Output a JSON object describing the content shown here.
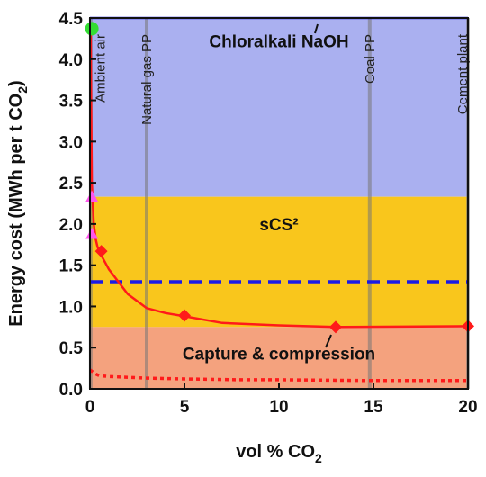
{
  "chart_data": {
    "type": "area",
    "xlabel": "vol % CO",
    "xlabel_sub": "2",
    "ylabel": "Energy cost (MWh per t CO",
    "ylabel_sub": "2",
    "ylabel_close": ")",
    "xlim": [
      0,
      20
    ],
    "ylim": [
      0,
      4.5
    ],
    "x_ticks": [
      0,
      5,
      10,
      15,
      20
    ],
    "y_ticks": [
      0.0,
      0.5,
      1.0,
      1.5,
      2.0,
      2.5,
      3.0,
      3.5,
      4.0,
      4.5
    ],
    "regions": [
      {
        "label": "Chloralkali NaOH",
        "ymin": 2.33,
        "ymax": 4.5,
        "color": "#aab0f0"
      },
      {
        "label": "sCS²",
        "ymin": 0.75,
        "ymax": 2.33,
        "color": "#f9c61c"
      },
      {
        "label": "Capture & compression",
        "ymin": 0.0,
        "ymax": 0.75,
        "color": "#f4a27e"
      }
    ],
    "source_lines": [
      {
        "label": "Ambient air",
        "x": 0.04
      },
      {
        "label": "Natural gas PP",
        "x": 3.0
      },
      {
        "label": "Coal PP",
        "x": 14.8
      },
      {
        "label": "Cement plant",
        "x": 20.0
      }
    ],
    "series": [
      {
        "style": "solid",
        "color": "#ff1a1a",
        "x": [
          0.04,
          0.06,
          0.1,
          0.2,
          0.3,
          0.4,
          0.6,
          1.0,
          2.0,
          3.0,
          4.0,
          5.0,
          7.0,
          10.0,
          13.0,
          20.0
        ],
        "y": [
          4.4,
          3.5,
          2.5,
          2.0,
          1.82,
          1.72,
          1.62,
          1.45,
          1.15,
          0.98,
          0.92,
          0.88,
          0.8,
          0.77,
          0.75,
          0.76
        ]
      },
      {
        "style": "dotted",
        "color": "#ff1a1a",
        "x": [
          0,
          0.3,
          0.5,
          1.0,
          2.0,
          3.0,
          5.0,
          8.0,
          10.0,
          15.0,
          20.0
        ],
        "y": [
          0.23,
          0.18,
          0.16,
          0.15,
          0.14,
          0.13,
          0.12,
          0.11,
          0.11,
          0.1,
          0.1
        ]
      }
    ],
    "markers": [
      {
        "shape": "diamond",
        "color": "#ff1a1a",
        "points": [
          {
            "x": 0.6,
            "y": 1.67
          },
          {
            "x": 5.0,
            "y": 0.89
          },
          {
            "x": 13.0,
            "y": 0.75
          },
          {
            "x": 20.0,
            "y": 0.76
          }
        ]
      },
      {
        "shape": "triangle",
        "color": "#ff55ee",
        "points": [
          {
            "x": 0.1,
            "y": 2.33
          },
          {
            "x": 0.1,
            "y": 1.88
          }
        ]
      },
      {
        "shape": "circle",
        "color": "#33dd33",
        "points": [
          {
            "x": 0.1,
            "y": 4.37
          }
        ]
      }
    ],
    "reference_lines": [
      {
        "y": 4.5,
        "style": "solid",
        "color": "#1a1ae6"
      },
      {
        "y": 1.3,
        "style": "dashed",
        "color": "#1a1ae6"
      }
    ]
  }
}
